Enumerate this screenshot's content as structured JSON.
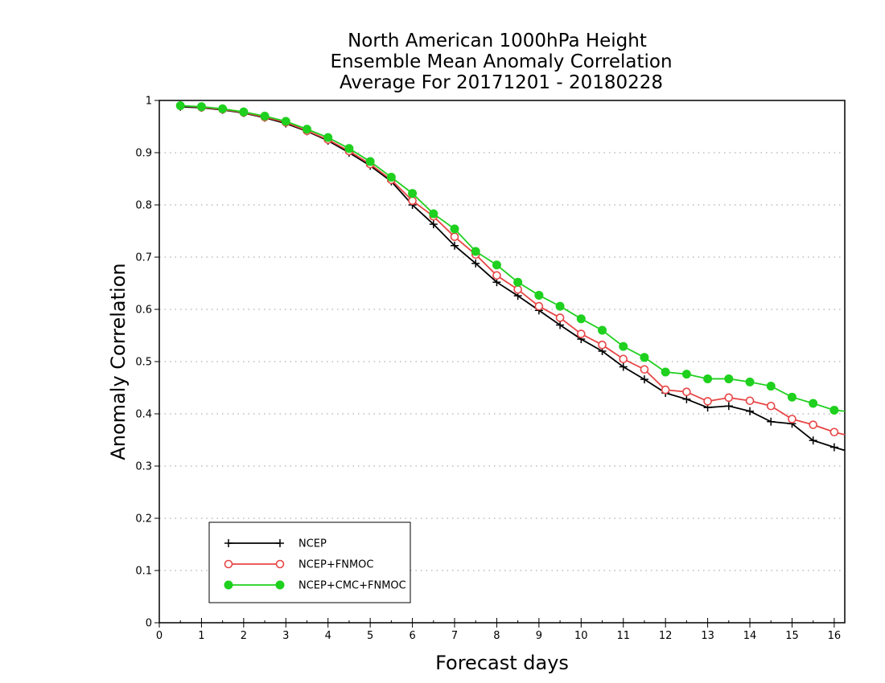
{
  "chart_data": {
    "type": "line",
    "title": [
      "North American 1000hPa Height",
      "Ensemble Mean Anomaly Correlation",
      "Average For 20171201 - 20180228"
    ],
    "xlabel": "Forecast days",
    "ylabel": "Anomaly Correlation",
    "xlim": [
      0,
      16.25
    ],
    "ylim": [
      0,
      1
    ],
    "xticks": [
      "0",
      "1",
      "2",
      "3",
      "4",
      "5",
      "6",
      "7",
      "8",
      "9",
      "10",
      "11",
      "12",
      "13",
      "14",
      "15",
      "16"
    ],
    "yticks": [
      "0",
      "0.1",
      "0.2",
      "0.3",
      "0.4",
      "0.5",
      "0.6",
      "0.7",
      "0.8",
      "0.9",
      "1"
    ],
    "grid": "horizontal-dotted",
    "legend_position": "bottom-left",
    "x": [
      0.5,
      1,
      1.5,
      2,
      2.5,
      3,
      3.5,
      4,
      4.5,
      5,
      5.5,
      6,
      6.5,
      7,
      7.5,
      8,
      8.5,
      9,
      9.5,
      10,
      10.5,
      11,
      11.5,
      12,
      12.5,
      13,
      13.5,
      14,
      14.5,
      15,
      15.5,
      16,
      16.25
    ],
    "series": [
      {
        "name": "NCEP",
        "color": "#000000",
        "marker": "plus",
        "values": [
          0.988,
          0.986,
          0.982,
          0.976,
          0.967,
          0.956,
          0.941,
          0.923,
          0.9,
          0.875,
          0.845,
          0.8,
          0.763,
          0.722,
          0.688,
          0.652,
          0.626,
          0.598,
          0.57,
          0.543,
          0.52,
          0.49,
          0.466,
          0.44,
          0.428,
          0.412,
          0.415,
          0.405,
          0.385,
          0.381,
          0.349,
          0.336,
          0.33
        ]
      },
      {
        "name": "NCEP+FNMOC",
        "color": "#e84545",
        "marker": "open-circle",
        "values": [
          0.99,
          0.987,
          0.983,
          0.977,
          0.968,
          0.958,
          0.942,
          0.925,
          0.903,
          0.878,
          0.848,
          0.808,
          0.778,
          0.739,
          0.705,
          0.665,
          0.638,
          0.606,
          0.584,
          0.553,
          0.532,
          0.505,
          0.485,
          0.446,
          0.442,
          0.424,
          0.431,
          0.425,
          0.415,
          0.39,
          0.379,
          0.365,
          0.36
        ]
      },
      {
        "name": "NCEP+CMC+FNMOC",
        "color": "#1fd01f",
        "marker": "filled-circle",
        "values": [
          0.99,
          0.988,
          0.984,
          0.978,
          0.97,
          0.96,
          0.945,
          0.929,
          0.908,
          0.883,
          0.853,
          0.822,
          0.783,
          0.754,
          0.711,
          0.685,
          0.652,
          0.627,
          0.606,
          0.582,
          0.56,
          0.529,
          0.508,
          0.48,
          0.476,
          0.467,
          0.467,
          0.461,
          0.453,
          0.432,
          0.42,
          0.407,
          0.405
        ]
      }
    ]
  }
}
